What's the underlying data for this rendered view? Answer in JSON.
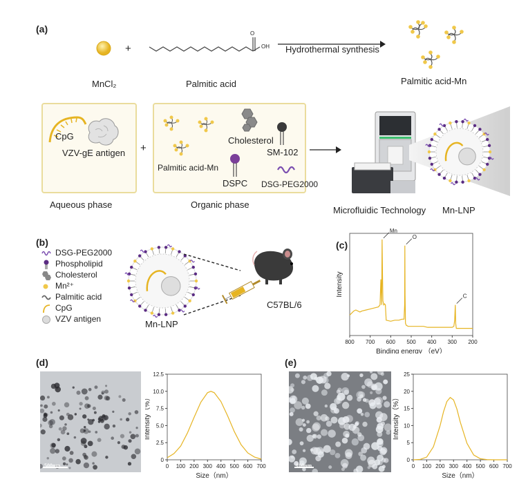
{
  "panels": {
    "a": "(a)",
    "b": "(b)",
    "c": "(c)",
    "d": "(d)",
    "e": "(e)"
  },
  "panel_a": {
    "mncl2": "MnCl₂",
    "plus": "+",
    "palmitic_acid": "Palmitic acid",
    "oh": "OH",
    "o": "O",
    "synthesis": "Hydrothermal synthesis",
    "palmitic_acid_mn": "Palmitic acid-Mn",
    "cpg": "CpG",
    "vzv_antigen": "VZV-gE antigen",
    "plus2": "+",
    "cholesterol": "Cholesterol",
    "sm102": "SM-102",
    "pa_mn_small": "Palmitic acid-Mn",
    "dspc": "DSPC",
    "dsg_peg": "DSG-PEG2000",
    "aqueous": "Aqueous phase",
    "organic": "Organic phase",
    "microfluidic": "Microfluidic Technology",
    "mn_lnp": "Mn-LNP"
  },
  "panel_b": {
    "legend": [
      {
        "label": "DSG-PEG2000",
        "icon": "peg-squiggle-icon"
      },
      {
        "label": "Phospholipid",
        "icon": "phospholipid-icon"
      },
      {
        "label": "Cholesterol",
        "icon": "cholesterol-icon"
      },
      {
        "label": "Mn²⁺",
        "icon": "mn-dot-icon"
      },
      {
        "label": "Palmitic acid",
        "icon": "palmitic-acid-icon"
      },
      {
        "label": "CpG",
        "icon": "cpg-icon"
      },
      {
        "label": "VZV antigen",
        "icon": "vzv-antigen-icon"
      }
    ],
    "mn_lnp": "Mn-LNP",
    "mouse": "C57BL/6"
  },
  "chart_data": [
    {
      "type": "line",
      "id": "c",
      "title": "",
      "xlabel": "Binding energy （eV）",
      "ylabel": "Intensity",
      "xlim": [
        800,
        200
      ],
      "x_ticks": [
        800,
        700,
        600,
        500,
        400,
        300,
        200
      ],
      "annotations": [
        {
          "text": "Mn",
          "x": 642
        },
        {
          "text": "O",
          "x": 531
        },
        {
          "text": "C",
          "x": 285
        }
      ],
      "series": [
        {
          "color": "#e6b422",
          "x": [
            800,
            790,
            780,
            770,
            760,
            750,
            740,
            720,
            700,
            680,
            660,
            652,
            648,
            644,
            642,
            640,
            638,
            634,
            630,
            626,
            622,
            600,
            580,
            560,
            545,
            535,
            532,
            531,
            530,
            528,
            524,
            515,
            500,
            480,
            460,
            440,
            420,
            400,
            380,
            360,
            340,
            320,
            300,
            292,
            288,
            285,
            283,
            280,
            276,
            260,
            240,
            220,
            200
          ],
          "y": [
            0.2,
            0.22,
            0.24,
            0.25,
            0.24,
            0.23,
            0.24,
            0.25,
            0.26,
            0.27,
            0.28,
            0.3,
            0.55,
            0.3,
            0.94,
            0.6,
            0.34,
            0.3,
            0.31,
            0.3,
            0.15,
            0.14,
            0.15,
            0.15,
            0.16,
            0.16,
            0.3,
            0.88,
            0.4,
            0.12,
            0.1,
            0.09,
            0.09,
            0.09,
            0.09,
            0.09,
            0.08,
            0.08,
            0.08,
            0.08,
            0.08,
            0.08,
            0.08,
            0.09,
            0.15,
            0.3,
            0.12,
            0.07,
            0.07,
            0.07,
            0.07,
            0.07,
            0.07
          ]
        }
      ]
    },
    {
      "type": "line",
      "id": "d",
      "title": "",
      "xlabel": "Size（nm）",
      "ylabel": "Intensity（%）",
      "xlim": [
        0,
        700
      ],
      "ylim": [
        0,
        12.5
      ],
      "x_ticks": [
        0,
        100,
        200,
        300,
        400,
        500,
        600,
        700
      ],
      "y_ticks": [
        0,
        2.5,
        5.0,
        7.5,
        10.0,
        12.5
      ],
      "y_tick_labels": [
        "0",
        "2.5",
        "5.0",
        "7.5",
        "10.0",
        "12.5"
      ],
      "series": [
        {
          "color": "#e6b422",
          "x": [
            0,
            50,
            100,
            150,
            200,
            250,
            300,
            325,
            350,
            400,
            450,
            500,
            550,
            600,
            650,
            700
          ],
          "y": [
            0.3,
            0.9,
            2.0,
            3.9,
            6.2,
            8.4,
            9.8,
            10.0,
            9.8,
            8.5,
            6.4,
            4.1,
            2.2,
            1.0,
            0.4,
            0.1
          ]
        }
      ]
    },
    {
      "type": "line",
      "id": "e",
      "title": "",
      "xlabel": "Size（nm）",
      "ylabel": "Intensity（%）",
      "xlim": [
        0,
        700
      ],
      "ylim": [
        0,
        25
      ],
      "x_ticks": [
        0,
        100,
        200,
        300,
        400,
        500,
        600,
        700
      ],
      "y_ticks": [
        0,
        5,
        10,
        15,
        20,
        25
      ],
      "series": [
        {
          "color": "#e6b422",
          "x": [
            0,
            50,
            100,
            150,
            200,
            225,
            250,
            275,
            300,
            325,
            350,
            400,
            450,
            500,
            550,
            600,
            700
          ],
          "y": [
            0.0,
            0.1,
            0.8,
            3.8,
            10.0,
            14.0,
            17.0,
            18.2,
            17.5,
            14.8,
            11.0,
            4.8,
            1.4,
            0.3,
            0.05,
            0.0,
            0.0
          ]
        }
      ]
    }
  ],
  "micrographs": {
    "d_scale": "500nm",
    "e_scale": "100nm"
  }
}
